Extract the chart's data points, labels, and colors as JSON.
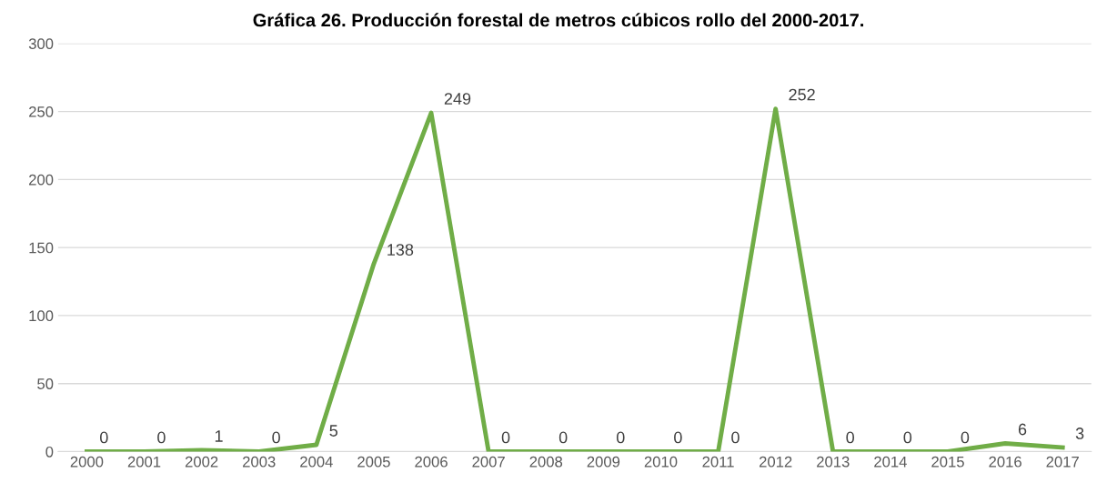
{
  "chart_data": {
    "type": "line",
    "title": "Gráfica 26. Producción forestal de metros cúbicos rollo del 2000-2017.",
    "categories": [
      "2000",
      "2001",
      "2002",
      "2003",
      "2004",
      "2005",
      "2006",
      "2007",
      "2008",
      "2009",
      "2010",
      "2011",
      "2012",
      "2013",
      "2014",
      "2015",
      "2016",
      "2017"
    ],
    "series": [
      {
        "color": "#70ad47",
        "values": [
          0,
          0,
          1,
          0,
          5,
          138,
          249,
          0,
          0,
          0,
          0,
          0,
          252,
          0,
          0,
          0,
          6,
          3
        ]
      }
    ],
    "ylim": [
      0,
      300
    ],
    "yticks": [
      0,
      50,
      100,
      150,
      200,
      250,
      300
    ],
    "grid": "y",
    "data_labels": true,
    "marker": "none",
    "line_style": "solid"
  }
}
